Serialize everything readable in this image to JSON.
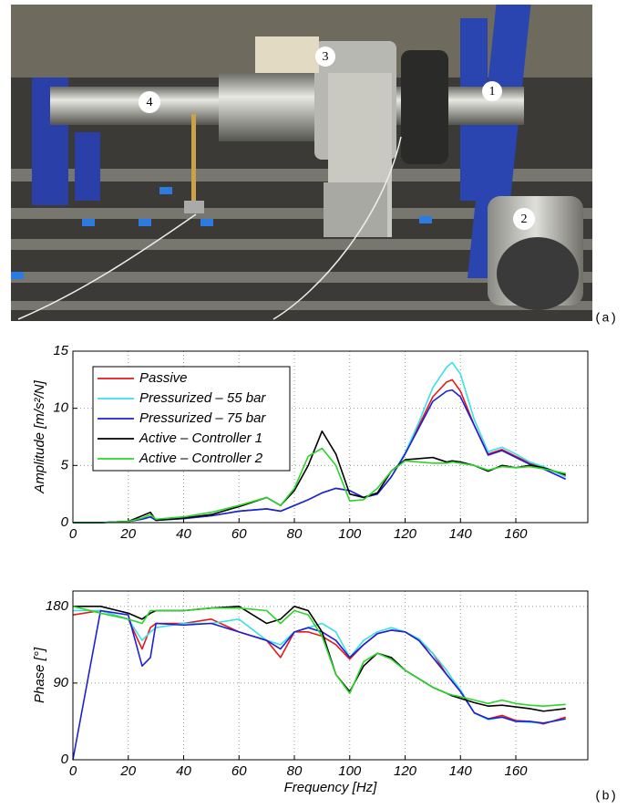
{
  "photo": {
    "callouts": [
      "1",
      "2",
      "3",
      "4"
    ]
  },
  "panels": [
    "(a)",
    "(b)"
  ],
  "chart_data": [
    {
      "type": "line",
      "ylabel": "Amplitude [m/s²/N]",
      "grid": true,
      "legend": "upper left",
      "xlim": [
        0,
        186
      ],
      "xticks": [
        0,
        20,
        40,
        60,
        80,
        100,
        120,
        140,
        160
      ],
      "ylim": [
        0,
        15
      ],
      "yticks": [
        0,
        5,
        10,
        15
      ],
      "x": [
        0,
        10,
        20,
        25,
        28,
        30,
        40,
        50,
        60,
        70,
        75,
        80,
        85,
        90,
        95,
        100,
        105,
        110,
        115,
        120,
        125,
        130,
        135,
        137,
        140,
        145,
        150,
        155,
        160,
        165,
        170,
        178
      ],
      "series": [
        {
          "name": "Passive",
          "color": "#e41a1a",
          "values": [
            0,
            0,
            0.1,
            0.3,
            0.5,
            0.2,
            0.35,
            0.6,
            1.0,
            1.2,
            1.0,
            1.5,
            2.0,
            2.6,
            3.0,
            2.8,
            2.2,
            2.5,
            4.0,
            6.0,
            8.5,
            11.0,
            12.3,
            12.5,
            11.5,
            8.5,
            6.0,
            6.4,
            5.8,
            5.2,
            4.8,
            4.1
          ]
        },
        {
          "name": "Pressurized – 55 bar",
          "color": "#38e0e8",
          "values": [
            0,
            0,
            0.1,
            0.3,
            0.5,
            0.2,
            0.35,
            0.6,
            1.0,
            1.2,
            1.0,
            1.5,
            2.0,
            2.6,
            3.0,
            2.8,
            2.2,
            2.5,
            4.0,
            6.1,
            8.8,
            11.8,
            13.6,
            14.0,
            13.0,
            9.0,
            6.2,
            6.6,
            6.0,
            5.3,
            4.9,
            4.0
          ]
        },
        {
          "name": "Pressurized – 75 bar",
          "color": "#1f1fd6",
          "values": [
            0,
            0,
            0.1,
            0.3,
            0.5,
            0.2,
            0.35,
            0.6,
            1.0,
            1.2,
            1.0,
            1.5,
            2.0,
            2.6,
            3.0,
            2.8,
            2.2,
            2.5,
            4.0,
            6.0,
            8.3,
            10.6,
            11.5,
            11.6,
            11.0,
            8.5,
            5.9,
            6.3,
            5.7,
            5.1,
            4.7,
            3.8
          ]
        },
        {
          "name": "Active – Controller 1",
          "color": "#000000",
          "values": [
            0,
            0,
            0.1,
            0.6,
            0.9,
            0.2,
            0.4,
            0.7,
            1.4,
            2.2,
            1.5,
            2.8,
            5.0,
            8.0,
            6.0,
            2.5,
            2.2,
            2.6,
            4.5,
            5.5,
            5.6,
            5.7,
            5.3,
            5.4,
            5.3,
            5.0,
            4.5,
            5.0,
            4.8,
            5.0,
            4.8,
            4.2
          ]
        },
        {
          "name": "Active – Controller 2",
          "color": "#2ad62a",
          "values": [
            0,
            0,
            0.1,
            0.4,
            0.7,
            0.3,
            0.5,
            0.9,
            1.5,
            2.2,
            1.5,
            3.0,
            5.8,
            6.5,
            5.0,
            1.9,
            2.0,
            3.0,
            4.5,
            5.4,
            5.3,
            5.2,
            5.2,
            5.3,
            5.2,
            5.0,
            4.6,
            4.9,
            4.8,
            4.9,
            4.7,
            4.3
          ]
        }
      ]
    },
    {
      "type": "line",
      "xlabel": "Frequency [Hz]",
      "ylabel": "Phase [°]",
      "grid": true,
      "xlim": [
        0,
        186
      ],
      "xticks": [
        0,
        20,
        40,
        60,
        80,
        100,
        120,
        140,
        160
      ],
      "ylim": [
        0,
        198
      ],
      "yticks": [
        0,
        90,
        180
      ],
      "x": [
        0,
        10,
        20,
        25,
        28,
        30,
        40,
        50,
        60,
        70,
        75,
        80,
        85,
        90,
        95,
        100,
        105,
        110,
        115,
        120,
        125,
        130,
        135,
        137,
        140,
        145,
        150,
        155,
        160,
        165,
        170,
        178
      ],
      "series": [
        {
          "name": "Passive",
          "color": "#e41a1a",
          "values": [
            170,
            175,
            165,
            130,
            155,
            160,
            160,
            165,
            150,
            140,
            120,
            150,
            150,
            145,
            135,
            118,
            135,
            148,
            152,
            150,
            140,
            125,
            100,
            92,
            80,
            55,
            48,
            52,
            46,
            45,
            42,
            50
          ]
        },
        {
          "name": "Pressurized – 55 bar",
          "color": "#38e0e8",
          "values": [
            175,
            175,
            165,
            140,
            150,
            155,
            160,
            160,
            165,
            140,
            135,
            150,
            155,
            160,
            150,
            120,
            140,
            150,
            155,
            150,
            142,
            125,
            105,
            95,
            82,
            55,
            47,
            50,
            45,
            44,
            43,
            48
          ]
        },
        {
          "name": "Pressurized – 75 bar",
          "color": "#1f1fd6",
          "values": [
            0,
            175,
            170,
            110,
            120,
            160,
            158,
            160,
            150,
            140,
            130,
            150,
            155,
            150,
            140,
            120,
            135,
            148,
            152,
            150,
            140,
            120,
            100,
            92,
            80,
            55,
            48,
            50,
            45,
            45,
            43,
            48
          ]
        },
        {
          "name": "Active – Controller 1",
          "color": "#000000",
          "values": [
            180,
            180,
            172,
            165,
            172,
            175,
            175,
            178,
            180,
            160,
            165,
            180,
            175,
            150,
            100,
            80,
            110,
            125,
            120,
            105,
            95,
            85,
            78,
            75,
            72,
            67,
            63,
            64,
            62,
            60,
            57,
            60
          ]
        },
        {
          "name": "Active – Controller 2",
          "color": "#2ad62a",
          "values": [
            180,
            172,
            165,
            160,
            175,
            175,
            175,
            178,
            178,
            175,
            160,
            175,
            170,
            145,
            100,
            78,
            115,
            125,
            118,
            105,
            95,
            85,
            78,
            76,
            74,
            70,
            66,
            70,
            66,
            64,
            63,
            65
          ]
        }
      ]
    }
  ]
}
